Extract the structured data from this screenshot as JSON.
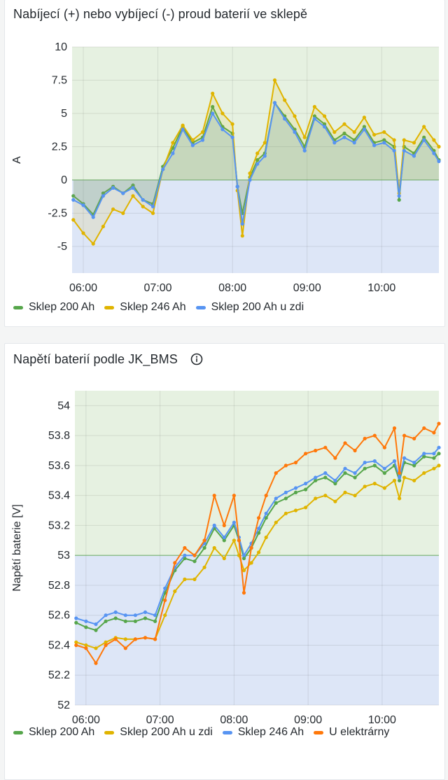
{
  "colors": {
    "green": "#56a64b",
    "yellow": "#e0b400",
    "blue": "#5794f2",
    "orange": "#ff780a",
    "band_green": "#e6f1e1",
    "band_blue": "#dde6f7"
  },
  "panel1": {
    "title": "Nabíjecí (+) nebo vybíjecí (-) proud baterií ve sklepě"
  },
  "panel2": {
    "title": "Napětí baterií podle JK_BMS",
    "info_icon": "info-circle-icon"
  },
  "chart_data": [
    {
      "type": "line",
      "title": "Nabíjecí (+) nebo vybíjecí (-) proud baterií ve sklepě",
      "xlabel": "",
      "ylabel": "A",
      "x_ticks": [
        "06:00",
        "07:00",
        "08:00",
        "09:00",
        "10:00"
      ],
      "y_ticks": [
        "10",
        "7.5",
        "5",
        "2.5",
        "0",
        "-2.5",
        "-5"
      ],
      "xlim": [
        "05:51",
        "10:46"
      ],
      "ylim": [
        -7,
        10
      ],
      "thresholds": [
        {
          "from": 0,
          "color": "green"
        },
        {
          "to": 0,
          "color": "blue"
        }
      ],
      "grid": true,
      "legend_placement": "bottom",
      "x": [
        "05:52",
        "06:00",
        "06:08",
        "06:16",
        "06:24",
        "06:32",
        "06:40",
        "06:48",
        "06:56",
        "07:04",
        "07:12",
        "07:20",
        "07:28",
        "07:36",
        "07:44",
        "07:52",
        "08:00",
        "08:04",
        "08:08",
        "08:14",
        "08:20",
        "08:26",
        "08:34",
        "08:42",
        "08:50",
        "08:58",
        "09:06",
        "09:14",
        "09:22",
        "09:30",
        "09:38",
        "09:46",
        "09:54",
        "10:02",
        "10:10",
        "10:14",
        "10:18",
        "10:26",
        "10:34",
        "10:42",
        "10:46"
      ],
      "series": [
        {
          "name": "Sklep 200 Ah",
          "color": "green",
          "values": [
            -1.2,
            -1.8,
            -2.6,
            -1.0,
            -0.5,
            -1.0,
            -0.4,
            -1.5,
            -1.8,
            1.0,
            2.4,
            4.0,
            2.8,
            3.2,
            5.5,
            4.0,
            3.5,
            -0.5,
            -2.5,
            0.2,
            1.5,
            2.0,
            5.8,
            4.8,
            3.8,
            2.5,
            4.8,
            4.2,
            3.0,
            3.5,
            3.0,
            4.0,
            2.8,
            3.0,
            2.5,
            -1.5,
            2.5,
            2.0,
            3.2,
            2.2,
            1.5
          ]
        },
        {
          "name": "Sklep 246 Ah",
          "color": "yellow",
          "values": [
            -3.0,
            -4.0,
            -4.8,
            -3.5,
            -2.2,
            -2.5,
            -1.2,
            -2.0,
            -2.5,
            0.8,
            2.8,
            4.1,
            3.0,
            3.6,
            6.5,
            5.0,
            4.2,
            -0.8,
            -4.2,
            0.5,
            2.0,
            2.8,
            7.5,
            6.0,
            4.8,
            3.2,
            5.5,
            4.8,
            3.6,
            4.2,
            3.6,
            4.7,
            3.4,
            3.6,
            3.0,
            -1.0,
            3.0,
            2.8,
            4.0,
            3.0,
            2.5
          ]
        },
        {
          "name": "Sklep 200 Ah u zdi",
          "color": "blue",
          "values": [
            -1.5,
            -1.9,
            -2.8,
            -1.2,
            -0.6,
            -1.0,
            -0.6,
            -1.5,
            -2.0,
            0.8,
            2.0,
            3.8,
            2.6,
            3.0,
            5.0,
            3.8,
            3.2,
            -0.5,
            -3.3,
            0.0,
            1.2,
            1.8,
            5.8,
            4.6,
            3.6,
            2.2,
            4.6,
            4.0,
            2.8,
            3.2,
            2.8,
            3.8,
            2.6,
            2.8,
            2.2,
            -1.2,
            2.2,
            1.8,
            3.0,
            2.0,
            1.4
          ]
        }
      ]
    },
    {
      "type": "line",
      "title": "Napětí baterií podle JK_BMS",
      "xlabel": "",
      "ylabel": "Napětí baterie [V]",
      "x_ticks": [
        "06:00",
        "07:00",
        "08:00",
        "09:00",
        "10:00"
      ],
      "y_ticks": [
        "54",
        "53.8",
        "53.6",
        "53.4",
        "53.2",
        "53",
        "52.8",
        "52.6",
        "52.4",
        "52.2",
        "52"
      ],
      "xlim": [
        "05:51",
        "10:46"
      ],
      "ylim": [
        52,
        54.1
      ],
      "thresholds": [
        {
          "from": 53,
          "color": "green"
        },
        {
          "to": 53,
          "color": "blue"
        }
      ],
      "grid": true,
      "legend_placement": "bottom",
      "x": [
        "05:52",
        "06:00",
        "06:08",
        "06:16",
        "06:24",
        "06:32",
        "06:40",
        "06:48",
        "06:56",
        "07:04",
        "07:12",
        "07:20",
        "07:28",
        "07:36",
        "07:44",
        "07:52",
        "08:00",
        "08:04",
        "08:08",
        "08:14",
        "08:20",
        "08:26",
        "08:34",
        "08:42",
        "08:50",
        "08:58",
        "09:06",
        "09:14",
        "09:22",
        "09:30",
        "09:38",
        "09:46",
        "09:54",
        "10:02",
        "10:10",
        "10:14",
        "10:18",
        "10:26",
        "10:34",
        "10:42",
        "10:46"
      ],
      "series": [
        {
          "name": "Sklep 200 Ah",
          "color": "green",
          "values": [
            52.55,
            52.52,
            52.5,
            52.56,
            52.58,
            52.56,
            52.56,
            52.58,
            52.56,
            52.75,
            52.9,
            52.98,
            52.96,
            53.05,
            53.18,
            53.1,
            53.2,
            53.1,
            52.98,
            53.05,
            53.15,
            53.25,
            53.35,
            53.38,
            53.42,
            53.44,
            53.5,
            53.52,
            53.48,
            53.55,
            53.52,
            53.58,
            53.6,
            53.55,
            53.6,
            53.5,
            53.62,
            53.6,
            53.66,
            53.65,
            53.68
          ]
        },
        {
          "name": "Sklep 200 Ah u zdi",
          "color": "yellow",
          "values": [
            52.42,
            52.4,
            52.38,
            52.42,
            52.45,
            52.44,
            52.44,
            52.45,
            52.44,
            52.6,
            52.76,
            52.84,
            52.84,
            52.92,
            53.05,
            52.98,
            53.1,
            53.0,
            52.9,
            52.95,
            53.02,
            53.12,
            53.22,
            53.28,
            53.3,
            53.32,
            53.38,
            53.4,
            53.36,
            53.42,
            53.4,
            53.46,
            53.48,
            53.45,
            53.5,
            53.38,
            53.52,
            53.5,
            53.55,
            53.58,
            53.6
          ]
        },
        {
          "name": "Sklep 246 Ah",
          "color": "blue",
          "values": [
            52.58,
            52.56,
            52.54,
            52.6,
            52.62,
            52.6,
            52.6,
            52.62,
            52.6,
            52.78,
            52.92,
            53.0,
            53.0,
            53.08,
            53.2,
            53.12,
            53.22,
            53.12,
            53.0,
            53.08,
            53.18,
            53.28,
            53.38,
            53.42,
            53.45,
            53.48,
            53.52,
            53.55,
            53.5,
            53.58,
            53.55,
            53.62,
            53.63,
            53.58,
            53.63,
            53.52,
            53.65,
            53.62,
            53.68,
            53.68,
            53.72
          ]
        },
        {
          "name": "U elektrárny",
          "color": "orange",
          "values": [
            52.4,
            52.38,
            52.28,
            52.4,
            52.44,
            52.38,
            52.44,
            52.45,
            52.44,
            52.7,
            52.95,
            53.05,
            53.0,
            53.1,
            53.4,
            53.2,
            53.4,
            53.1,
            52.75,
            53.05,
            53.25,
            53.4,
            53.55,
            53.6,
            53.62,
            53.68,
            53.7,
            53.72,
            53.65,
            53.75,
            53.7,
            53.78,
            53.8,
            53.72,
            53.85,
            53.55,
            53.8,
            53.78,
            53.85,
            53.82,
            53.88
          ]
        }
      ]
    }
  ]
}
